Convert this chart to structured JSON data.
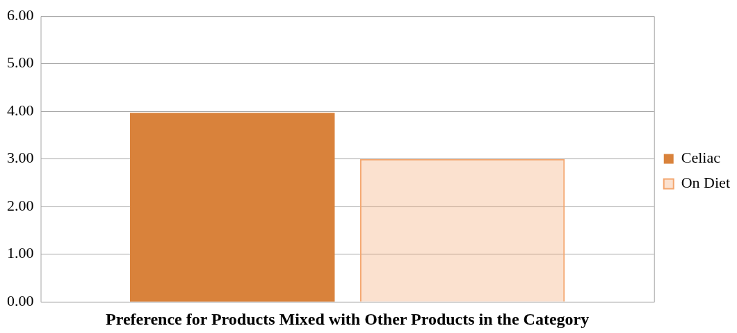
{
  "chart_data": {
    "type": "bar",
    "xlabel": "Preference for Products Mixed with Other Products in the Category",
    "categories": [
      null
    ],
    "series": [
      {
        "name": "Celiac",
        "color": "#d9823b",
        "values": [
          3.97
        ]
      },
      {
        "name": "On Diet",
        "color": "#f4a66e",
        "values": [
          3.0
        ]
      }
    ],
    "ylim": [
      0,
      6
    ],
    "yticks": [
      {
        "value": 0,
        "label": "0.00"
      },
      {
        "value": 1,
        "label": "1.00"
      },
      {
        "value": 2,
        "label": "2.00"
      },
      {
        "value": 3,
        "label": "3.00"
      },
      {
        "value": 4,
        "label": "4.00"
      },
      {
        "value": 5,
        "label": "5.00"
      },
      {
        "value": 6,
        "label": "6.00"
      }
    ],
    "grid": "y",
    "legend": "right"
  }
}
